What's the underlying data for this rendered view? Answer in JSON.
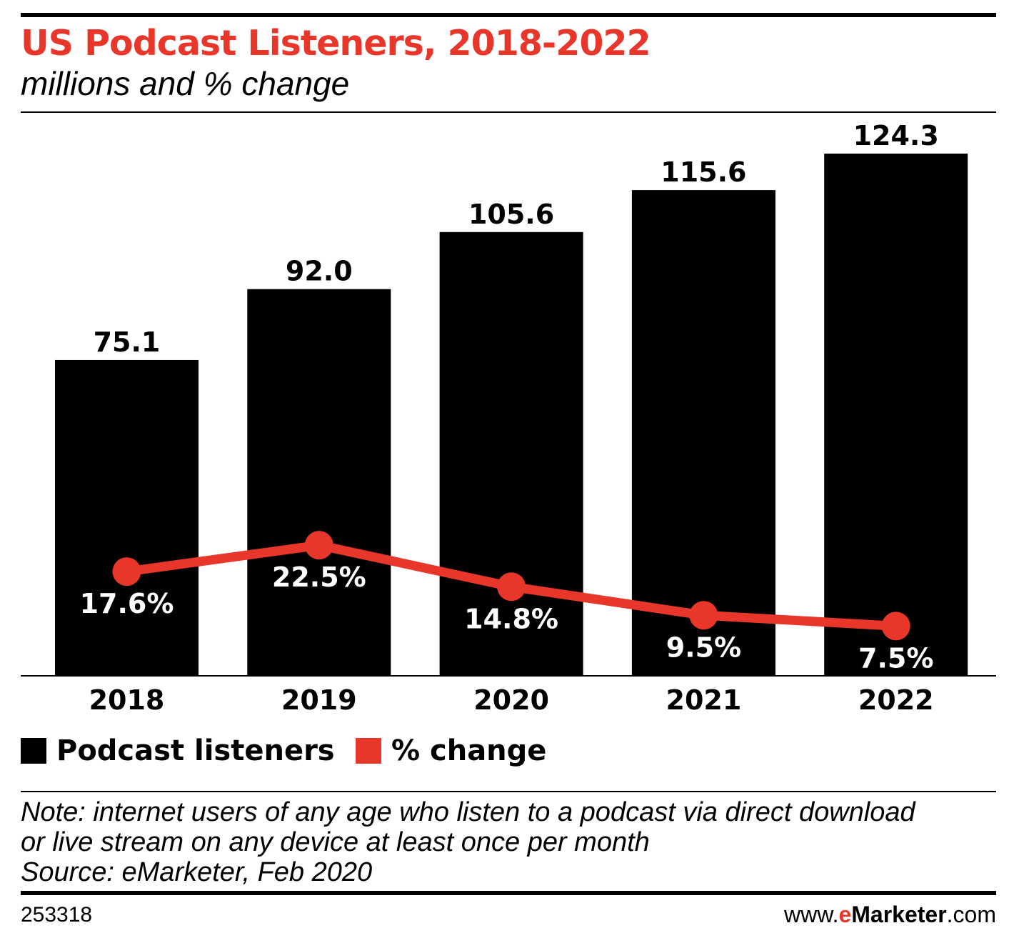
{
  "title": "US Podcast Listeners, 2018-2022",
  "subtitle": "millions and % change",
  "chart_data": {
    "type": "bar",
    "categories": [
      "2018",
      "2019",
      "2020",
      "2021",
      "2022"
    ],
    "series": [
      {
        "name": "Podcast listeners",
        "type": "bar",
        "color": "#000000",
        "values": [
          75.1,
          92.0,
          105.6,
          115.6,
          124.3
        ],
        "labels": [
          "75.1",
          "92.0",
          "105.6",
          "115.6",
          "124.3"
        ]
      },
      {
        "name": "% change",
        "type": "line",
        "color": "#e8372a",
        "values": [
          17.6,
          22.5,
          14.8,
          9.5,
          7.5
        ],
        "labels": [
          "17.6%",
          "22.5%",
          "14.8%",
          "9.5%",
          "7.5%"
        ]
      }
    ],
    "ylim": [
      0,
      124.3
    ],
    "line_ylim": [
      0,
      22.5
    ],
    "grid": false,
    "legend_position": "bottom-left"
  },
  "legend": [
    "Podcast listeners",
    "% change"
  ],
  "notes": [
    "Note: internet users of any age who listen to a podcast via direct download",
    "or live stream on any device at least once per month",
    "Source: eMarketer, Feb 2020"
  ],
  "footer": {
    "id": "253318",
    "logo_prefix": "www.",
    "logo_e": "e",
    "logo_brand": "Marketer",
    "logo_suffix": ".com"
  }
}
